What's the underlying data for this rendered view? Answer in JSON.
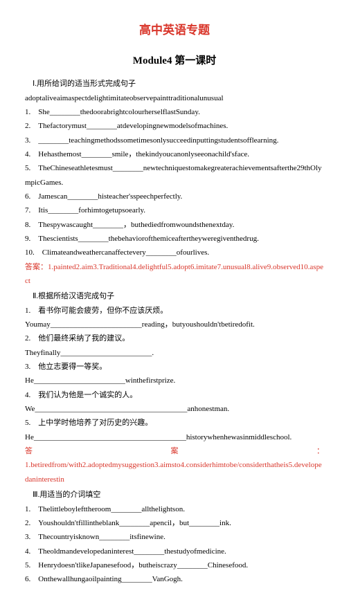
{
  "title": "高中英语专题",
  "subtitle": "Module4 第一课时",
  "sectionI": {
    "heading": "Ⅰ.用所给词的适当形式完成句子",
    "wordbank": "adoptaliveaimaspectdelightimitateobservepainttraditionalunusual",
    "items": [
      "1.　She________thedoorabrightcolourherselflastSunday.",
      "2.　Thefactorymust________atdevelopingnewmodelsofmachines.",
      "3.　________teachingmethodssometimesonlysucceedinputtingstudentsofflearning.",
      "4.　Hehasthemost________smile，thekindyoucanonlyseeonachild'sface.",
      "5.　TheChineseathletesmust________newtechniquestomakegreaterachievementsafterthe29thOlympicGames.",
      "6.　Jamescan________histeacher'sspeechperfectly.",
      "7.　Itis________forhimtogetupsoearly.",
      "8.　Thespywascaught________，buthediedfromwoundsthenextday.",
      "9.　Thescientists________thebehaviorofthemiceaftertheyweregiventhedrug.",
      "10.　Climateandweathercanaffectevery________ofourlives."
    ],
    "answer": "答案：1.painted2.aim3.Traditional4.delightful5.adopt6.imitate7.unusual8.alive9.observed10.aspect"
  },
  "sectionII": {
    "heading": "Ⅱ.根据所给汉语完成句子",
    "items": [
      "1.　看书你可能会疲劳，但你不应该厌烦。",
      "Youmay________________________reading，butyoushouldn'tbetiredofit.",
      "2.　他们最终采纳了我的建议。",
      "Theyfinally________________________.",
      "3.　他立志要得一等奖。",
      "He________________________winthefirstprize.",
      "4.　我们认为他是一个诚实的人。",
      "We________________________________________anhonestman.",
      "5.　上中学时他培养了对历史的兴趣。",
      "He________________________________________historywhenhewasinmiddleschool."
    ],
    "answerLabel": "答",
    "answerLabel2": "案",
    "answerColon": "：",
    "answer": "1.betiredfrom/with2.adoptedmysuggestion3.aimsto4.considerhimtobe/considerthatheis5.developedaninterestin"
  },
  "sectionIII": {
    "heading": "Ⅲ.用适当的介词填空",
    "items": [
      "1.　Thelittleboylefttheroom________allthelightson.",
      "2.　Youshouldn'tfillintheblank________apencil，but________ink.",
      "3.　Thecountryisknown________itsfinewine.",
      "4.　Theoldmandevelopedaninterest________thestudyofmedicine.",
      "5.　Henrydoesn'tlikeJapanesefood，butheiscrazy________Chinesefood.",
      "6.　Onthewallhungaoilpainting________VanGogh."
    ]
  }
}
